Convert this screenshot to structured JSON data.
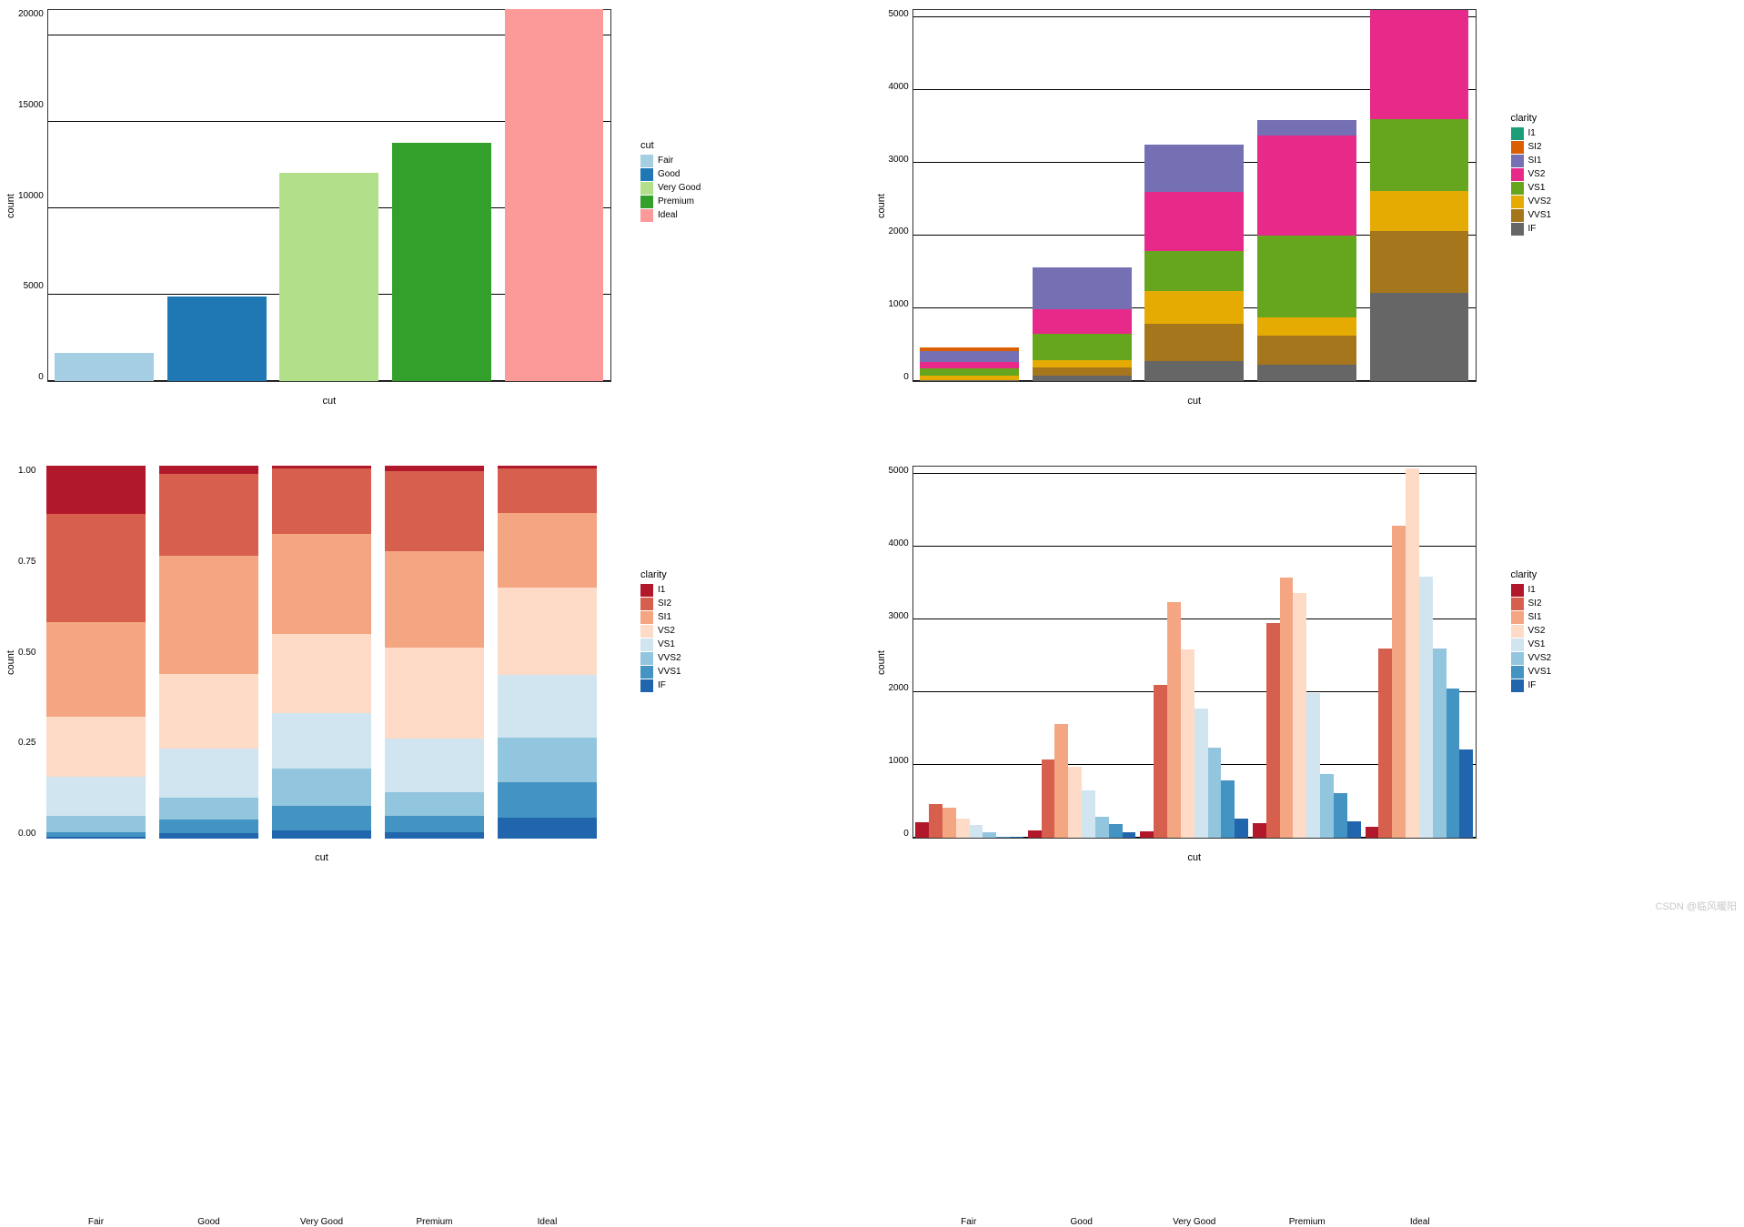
{
  "watermark": "CSDN @临风暖阳",
  "categories": [
    "Fair",
    "Good",
    "Very Good",
    "Premium",
    "Ideal"
  ],
  "clarity_levels": [
    "I1",
    "SI2",
    "SI1",
    "VS2",
    "VS1",
    "VVS2",
    "VVS1",
    "IF"
  ],
  "chart_tl": {
    "type": "bar",
    "ylabel": "count",
    "xlabel": "cut",
    "ylim": [
      0,
      21500
    ],
    "yticks": [
      0,
      5000,
      10000,
      15000,
      20000
    ],
    "ytick_labels": [
      "0",
      "5000",
      "10000",
      "15000",
      "20000"
    ],
    "values": [
      1610,
      4906,
      12082,
      13791,
      21551
    ],
    "colors": [
      "#a6cee3",
      "#1f78b4",
      "#b2df8a",
      "#33a02c",
      "#fb9a99"
    ],
    "background_color": "#ffffff",
    "grid_color": "#000000",
    "bar_width": 0.88,
    "label_fontsize": 11,
    "tick_fontsize": 10,
    "legend_title": "cut",
    "legend_items": [
      {
        "label": "Fair",
        "color": "#a6cee3"
      },
      {
        "label": "Good",
        "color": "#1f78b4"
      },
      {
        "label": "Very Good",
        "color": "#b2df8a"
      },
      {
        "label": "Premium",
        "color": "#33a02c"
      },
      {
        "label": "Ideal",
        "color": "#fb9a99"
      }
    ]
  },
  "chart_tr": {
    "type": "stacked_bar_max",
    "ylabel": "count",
    "xlabel": "cut",
    "ylim": [
      0,
      5100
    ],
    "yticks": [
      0,
      1000,
      2000,
      3000,
      4000,
      5000
    ],
    "ytick_labels": [
      "0",
      "1000",
      "2000",
      "3000",
      "4000",
      "5000"
    ],
    "legend_title": "clarity",
    "clarity_colors": {
      "I1": "#1b9e77",
      "SI2": "#d95f02",
      "SI1": "#7570b3",
      "VS2": "#e7298a",
      "VS1": "#66a61e",
      "VVS2": "#e6ab02",
      "VVS1": "#a6761d",
      "IF": "#666666"
    },
    "series_max": {
      "I1": [
        210,
        96,
        84,
        205,
        146
      ],
      "SI2": [
        466,
        1081,
        2100,
        2949,
        2598
      ],
      "SI1": [
        408,
        1560,
        3240,
        3575,
        4282
      ],
      "VS2": [
        261,
        978,
        2591,
        3357,
        5071
      ],
      "VS1": [
        170,
        648,
        1775,
        1989,
        3589
      ],
      "VVS2": [
        69,
        286,
        1235,
        870,
        2606
      ],
      "VVS1": [
        17,
        186,
        789,
        616,
        2047
      ],
      "IF": [
        9,
        71,
        268,
        230,
        1212
      ]
    },
    "bar_width": 0.88
  },
  "chart_bl": {
    "type": "stacked_bar_fill",
    "ylabel": "count",
    "xlabel": "cut",
    "ylim": [
      0,
      1.0
    ],
    "yticks": [
      0.0,
      0.25,
      0.5,
      0.75,
      1.0
    ],
    "ytick_labels": [
      "0.00",
      "0.25",
      "0.50",
      "0.75",
      "1.00"
    ],
    "legend_title": "clarity",
    "clarity_colors": {
      "I1": "#b2182b",
      "SI2": "#d6604d",
      "SI1": "#f4a582",
      "VS2": "#fddbc7",
      "VS1": "#d1e5f0",
      "VVS2": "#92c5de",
      "VVS1": "#4393c3",
      "IF": "#2166ac"
    },
    "proportions": {
      "Fair": {
        "I1": 0.13,
        "SI2": 0.29,
        "SI1": 0.253,
        "VS2": 0.162,
        "VS1": 0.106,
        "VVS2": 0.043,
        "VVS1": 0.011,
        "IF": 0.006
      },
      "Good": {
        "I1": 0.02,
        "SI2": 0.22,
        "SI1": 0.318,
        "VS2": 0.199,
        "VS1": 0.132,
        "VVS2": 0.058,
        "VVS1": 0.038,
        "IF": 0.014
      },
      "Very Good": {
        "I1": 0.007,
        "SI2": 0.174,
        "SI1": 0.268,
        "VS2": 0.214,
        "VS1": 0.147,
        "VVS2": 0.102,
        "VVS1": 0.065,
        "IF": 0.022
      },
      "Premium": {
        "I1": 0.015,
        "SI2": 0.214,
        "SI1": 0.259,
        "VS2": 0.243,
        "VS1": 0.144,
        "VVS2": 0.063,
        "VVS1": 0.045,
        "IF": 0.017
      },
      "Ideal": {
        "I1": 0.007,
        "SI2": 0.121,
        "SI1": 0.199,
        "VS2": 0.235,
        "VS1": 0.167,
        "VVS2": 0.121,
        "VVS1": 0.095,
        "IF": 0.056
      }
    },
    "bar_width": 0.88
  },
  "chart_br": {
    "type": "grouped_bar",
    "ylabel": "count",
    "xlabel": "cut",
    "ylim": [
      0,
      5100
    ],
    "yticks": [
      0,
      1000,
      2000,
      3000,
      4000,
      5000
    ],
    "ytick_labels": [
      "0",
      "1000",
      "2000",
      "3000",
      "4000",
      "5000"
    ],
    "legend_title": "clarity",
    "clarity_colors": {
      "I1": "#b2182b",
      "SI2": "#d6604d",
      "SI1": "#f4a582",
      "VS2": "#fddbc7",
      "VS1": "#d1e5f0",
      "VVS2": "#92c5de",
      "VVS1": "#4393c3",
      "IF": "#2166ac"
    },
    "series": {
      "I1": [
        210,
        96,
        84,
        205,
        146
      ],
      "SI2": [
        466,
        1081,
        2100,
        2949,
        2598
      ],
      "SI1": [
        408,
        1560,
        3240,
        3575,
        4282
      ],
      "VS2": [
        261,
        978,
        2591,
        3357,
        5071
      ],
      "VS1": [
        170,
        648,
        1775,
        1989,
        3589
      ],
      "VVS2": [
        69,
        286,
        1235,
        870,
        2606
      ],
      "VVS1": [
        17,
        186,
        789,
        616,
        2047
      ],
      "IF": [
        9,
        71,
        268,
        230,
        1212
      ]
    },
    "bar_width": 0.96
  }
}
